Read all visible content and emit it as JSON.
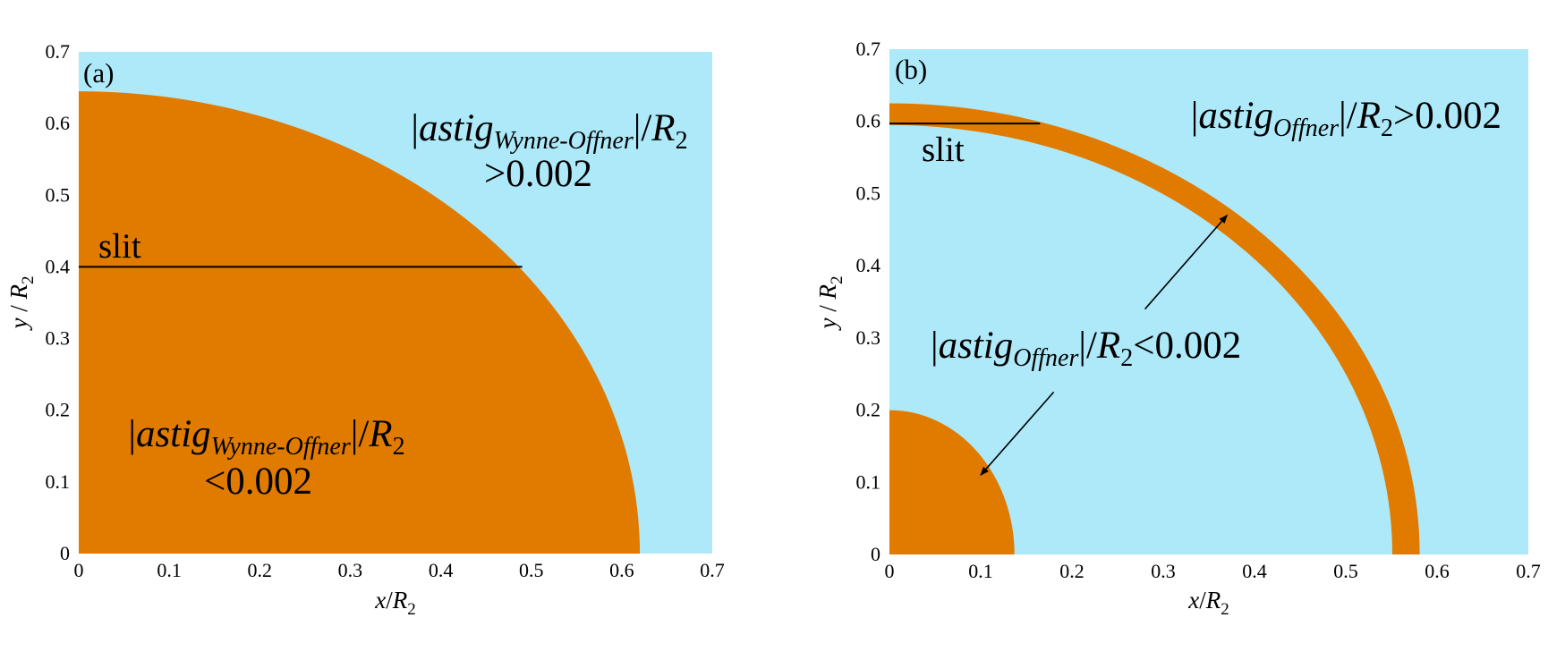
{
  "colors": {
    "below_threshold": "#e07b00",
    "above_threshold": "#ade9f9",
    "line": "#000000"
  },
  "chart_data": [
    {
      "type": "heatmap",
      "panel_label": "(a)",
      "xlabel": {
        "var": "x",
        "sep": "/",
        "sym": "R",
        "sub": "2"
      },
      "ylabel": {
        "var": "y",
        "sep": " / ",
        "sym": "R",
        "sub": "2"
      },
      "xlim": [
        0,
        0.7
      ],
      "ylim": [
        0,
        0.7
      ],
      "xticks": [
        "0",
        "0.1",
        "0.2",
        "0.3",
        "0.4",
        "0.5",
        "0.6",
        "0.7"
      ],
      "yticks": [
        "0",
        "0.1",
        "0.2",
        "0.3",
        "0.4",
        "0.5",
        "0.6",
        "0.7"
      ],
      "background_region": "above_threshold",
      "regions": [
        {
          "shape": "quarter-ellipse",
          "color_key": "below_threshold",
          "rx": 0.62,
          "ry": 0.645
        }
      ],
      "slit": {
        "label": "slit",
        "y": 0.4,
        "x_start": 0,
        "x_end": 0.49
      },
      "arrows": [],
      "annotations": [
        {
          "pipe_open": "|",
          "main": "astig",
          "subscript": "Wynne-Offner",
          "pipe_close": "|",
          "sep": "/",
          "sym": "R",
          "sym_sub": "2",
          "relation": ">0.002",
          "region": "above_threshold"
        },
        {
          "pipe_open": "|",
          "main": "astig",
          "subscript": "Wynne-Offner",
          "pipe_close": "|",
          "sep": "/",
          "sym": "R",
          "sym_sub": "2",
          "relation": "<0.002",
          "region": "below_threshold"
        }
      ]
    },
    {
      "type": "heatmap",
      "panel_label": "(b)",
      "xlabel": {
        "var": "x",
        "sep": "/",
        "sym": "R",
        "sub": "2"
      },
      "ylabel": {
        "var": "y",
        "sep": " / ",
        "sym": "R",
        "sub": "2"
      },
      "xlim": [
        0,
        0.7
      ],
      "ylim": [
        0,
        0.7
      ],
      "xticks": [
        "0",
        "0.1",
        "0.2",
        "0.3",
        "0.4",
        "0.5",
        "0.6",
        "0.7"
      ],
      "yticks": [
        "0",
        "0.1",
        "0.2",
        "0.3",
        "0.4",
        "0.5",
        "0.6",
        "0.7"
      ],
      "background_region": "above_threshold",
      "regions": [
        {
          "shape": "quarter-ellipse",
          "color_key": "below_threshold",
          "rx": 0.137,
          "ry": 0.2
        },
        {
          "shape": "quarter-annulus",
          "color_key": "below_threshold",
          "outer_rx": 0.581,
          "outer_ry": 0.625,
          "inner_rx": 0.551,
          "inner_ry": 0.595
        }
      ],
      "slit": {
        "label": "slit",
        "y": 0.597,
        "x_start": 0,
        "x_end": 0.165
      },
      "arrows": [
        {
          "from": [
            0.28,
            0.34
          ],
          "to": [
            0.37,
            0.47
          ]
        },
        {
          "from": [
            0.18,
            0.225
          ],
          "to": [
            0.1,
            0.11
          ]
        }
      ],
      "annotations": [
        {
          "pipe_open": "|",
          "main": "astig",
          "subscript": "Offner",
          "pipe_close": "|",
          "sep": "/",
          "sym": "R",
          "sym_sub": "2",
          "relation": ">0.002",
          "region": "above_threshold"
        },
        {
          "pipe_open": "|",
          "main": "astig",
          "subscript": "Offner",
          "pipe_close": "|",
          "sep": "/",
          "sym": "R",
          "sym_sub": "2",
          "relation": "<0.002",
          "region": "below_threshold"
        }
      ]
    }
  ]
}
